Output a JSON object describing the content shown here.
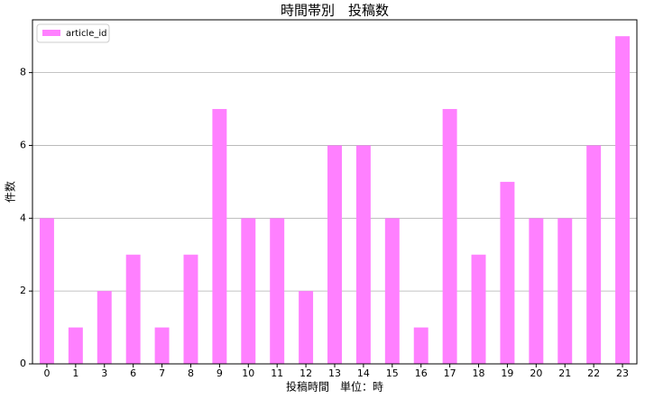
{
  "chart_data": {
    "type": "bar",
    "title": "時間帯別　投稿数",
    "x_label": "投稿時間　単位：時",
    "y_label": "件数",
    "categories": [
      "0",
      "1",
      "3",
      "6",
      "7",
      "8",
      "9",
      "10",
      "11",
      "12",
      "13",
      "14",
      "15",
      "16",
      "17",
      "18",
      "19",
      "20",
      "21",
      "22",
      "23"
    ],
    "series": [
      {
        "name": "article_id",
        "color": "#ff80ff",
        "values": [
          4,
          1,
          2,
          3,
          1,
          3,
          7,
          4,
          4,
          2,
          6,
          6,
          4,
          1,
          7,
          3,
          5,
          4,
          4,
          6,
          9
        ]
      }
    ],
    "ylim": [
      0,
      9.45
    ],
    "yticks": [
      0,
      2,
      4,
      6,
      8
    ],
    "grid": true,
    "legend": "upper-left"
  }
}
